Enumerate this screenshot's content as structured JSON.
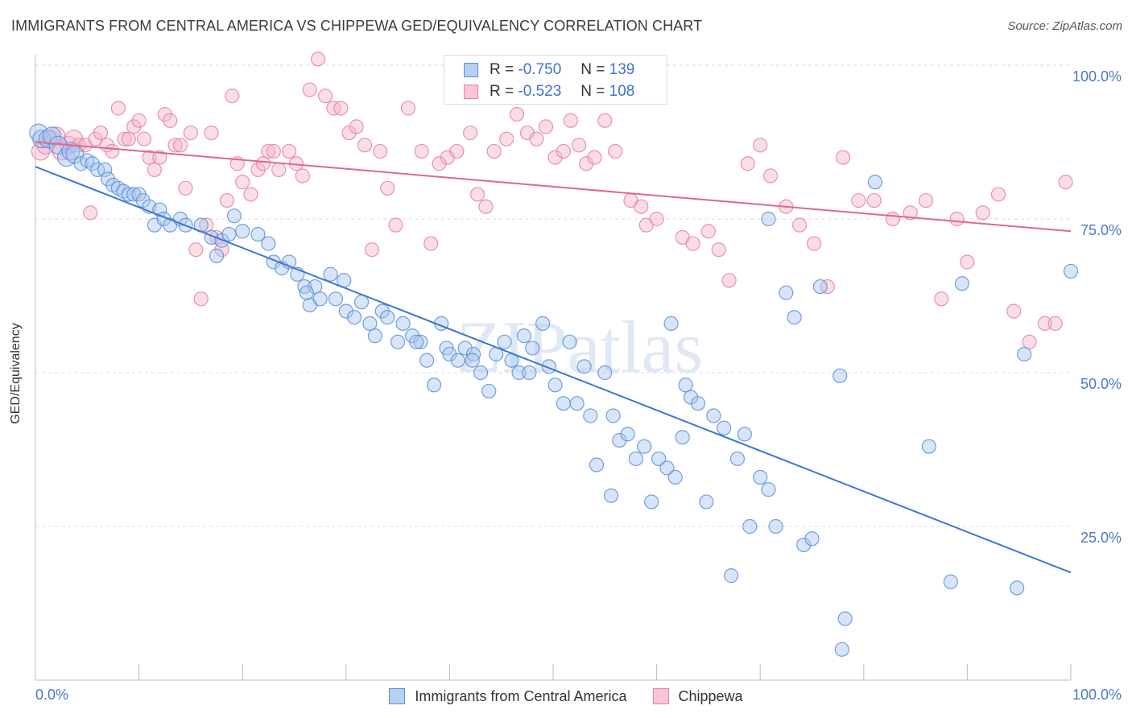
{
  "title": "IMMIGRANTS FROM CENTRAL AMERICA VS CHIPPEWA GED/EQUIVALENCY CORRELATION CHART",
  "source": "Source: ZipAtlas.com",
  "watermark": "ZIPatlas",
  "legend": {
    "rows": [
      {
        "r_label": "R =",
        "r_value": "-0.750",
        "n_label": "N =",
        "n_value": "139"
      },
      {
        "r_label": "R =",
        "r_value": "-0.523",
        "n_label": "N =",
        "n_value": "108"
      }
    ]
  },
  "chart_data": {
    "type": "scatter",
    "xlabel": "",
    "ylabel": "GED/Equivalency",
    "xlim": [
      0,
      100
    ],
    "ylim": [
      0,
      100
    ],
    "x_tick_labels": [
      "0.0%",
      "100.0%"
    ],
    "y_tick_labels": [
      "25.0%",
      "50.0%",
      "75.0%",
      "100.0%"
    ],
    "y_ticks": [
      25,
      50,
      75,
      100
    ],
    "grid": "horizontal dashed",
    "series": [
      {
        "name": "Immigrants from Central America",
        "color": "#5b8fd8",
        "fill": "#a9c6ef",
        "trend": {
          "x": [
            0,
            100
          ],
          "y": [
            83.5,
            17.5
          ]
        },
        "points": [
          [
            0.3,
            89
          ],
          [
            0.6,
            88
          ],
          [
            1.2,
            88
          ],
          [
            1.6,
            88.5
          ],
          [
            2.2,
            87
          ],
          [
            3.0,
            85
          ],
          [
            3.4,
            86
          ],
          [
            3.8,
            85.5
          ],
          [
            4.4,
            84
          ],
          [
            5.0,
            84.5
          ],
          [
            5.5,
            84
          ],
          [
            6.0,
            83
          ],
          [
            6.7,
            83
          ],
          [
            7.0,
            81.5
          ],
          [
            7.5,
            80.5
          ],
          [
            8.0,
            80
          ],
          [
            8.5,
            79.5
          ],
          [
            9.0,
            79
          ],
          [
            9.5,
            79
          ],
          [
            10.0,
            79
          ],
          [
            10.4,
            78
          ],
          [
            11.0,
            77
          ],
          [
            11.5,
            74
          ],
          [
            12.0,
            76.5
          ],
          [
            12.4,
            75
          ],
          [
            13.0,
            74
          ],
          [
            14.0,
            75
          ],
          [
            14.5,
            74
          ],
          [
            16.0,
            74
          ],
          [
            17.0,
            72
          ],
          [
            17.5,
            69
          ],
          [
            18.0,
            71.5
          ],
          [
            18.7,
            72.5
          ],
          [
            19.2,
            75.5
          ],
          [
            20.0,
            73
          ],
          [
            21.5,
            72.5
          ],
          [
            22.5,
            71
          ],
          [
            23.0,
            68
          ],
          [
            23.8,
            67
          ],
          [
            24.5,
            68
          ],
          [
            25.3,
            66
          ],
          [
            26.0,
            64
          ],
          [
            26.5,
            61
          ],
          [
            27.0,
            64
          ],
          [
            27.5,
            62
          ],
          [
            28.5,
            66
          ],
          [
            29.0,
            62
          ],
          [
            29.8,
            65
          ],
          [
            30.0,
            60
          ],
          [
            30.8,
            59
          ],
          [
            31.5,
            61.5
          ],
          [
            32.3,
            58
          ],
          [
            32.8,
            56
          ],
          [
            33.5,
            60
          ],
          [
            34.0,
            59
          ],
          [
            35.0,
            55
          ],
          [
            35.5,
            58
          ],
          [
            36.4,
            56
          ],
          [
            37.2,
            55
          ],
          [
            37.8,
            52
          ],
          [
            38.5,
            48
          ],
          [
            39.2,
            58
          ],
          [
            39.7,
            54
          ],
          [
            40.0,
            53
          ],
          [
            40.8,
            52
          ],
          [
            41.5,
            54
          ],
          [
            42.3,
            53
          ],
          [
            43.0,
            50
          ],
          [
            43.8,
            47
          ],
          [
            44.5,
            53
          ],
          [
            45.3,
            55
          ],
          [
            46.0,
            52
          ],
          [
            46.7,
            50
          ],
          [
            47.2,
            56
          ],
          [
            48.0,
            54
          ],
          [
            49.0,
            58
          ],
          [
            49.6,
            51
          ],
          [
            50.2,
            48
          ],
          [
            51.0,
            45
          ],
          [
            51.6,
            55
          ],
          [
            52.3,
            45
          ],
          [
            53.0,
            51
          ],
          [
            53.6,
            43
          ],
          [
            54.2,
            35
          ],
          [
            55.0,
            50
          ],
          [
            55.8,
            43
          ],
          [
            56.4,
            39
          ],
          [
            57.2,
            40
          ],
          [
            58.0,
            36
          ],
          [
            58.8,
            38
          ],
          [
            59.5,
            29
          ],
          [
            60.2,
            36
          ],
          [
            61.0,
            34.5
          ],
          [
            61.8,
            33
          ],
          [
            62.5,
            39.5
          ],
          [
            63.3,
            46
          ],
          [
            64.0,
            45
          ],
          [
            64.8,
            29
          ],
          [
            65.5,
            43
          ],
          [
            66.5,
            41
          ],
          [
            67.2,
            17
          ],
          [
            67.8,
            36
          ],
          [
            68.5,
            40
          ],
          [
            69.0,
            25
          ],
          [
            70.0,
            33
          ],
          [
            70.8,
            31
          ],
          [
            71.5,
            25
          ],
          [
            72.5,
            63
          ],
          [
            73.3,
            59
          ],
          [
            74.2,
            22
          ],
          [
            75.0,
            23
          ],
          [
            75.8,
            64
          ],
          [
            47.7,
            50
          ],
          [
            61.4,
            58
          ],
          [
            86.3,
            38
          ],
          [
            94.8,
            15
          ],
          [
            100,
            66.5
          ],
          [
            89.5,
            64.5
          ],
          [
            95.5,
            53
          ],
          [
            77.9,
            5
          ],
          [
            78.2,
            10
          ],
          [
            77.7,
            49.5
          ],
          [
            81.1,
            81
          ],
          [
            70.8,
            75
          ],
          [
            88.4,
            16
          ],
          [
            62.8,
            48
          ],
          [
            55.6,
            30
          ],
          [
            42.2,
            52
          ],
          [
            36.8,
            55
          ],
          [
            26.2,
            63
          ]
        ]
      },
      {
        "name": "Chippewa",
        "color": "#e87fa2",
        "fill": "#f5b6c8",
        "trend": {
          "x": [
            0,
            100
          ],
          "y": [
            87.5,
            73
          ]
        },
        "points": [
          [
            0.5,
            86
          ],
          [
            1.0,
            87
          ],
          [
            1.5,
            88
          ],
          [
            2.0,
            88.5
          ],
          [
            2.5,
            86
          ],
          [
            3.2,
            87
          ],
          [
            3.7,
            88
          ],
          [
            4.2,
            87
          ],
          [
            4.8,
            87
          ],
          [
            5.3,
            76
          ],
          [
            5.8,
            88
          ],
          [
            6.3,
            89
          ],
          [
            6.9,
            87
          ],
          [
            7.4,
            86
          ],
          [
            8.0,
            93
          ],
          [
            8.6,
            88
          ],
          [
            9.0,
            88
          ],
          [
            9.5,
            90
          ],
          [
            10.0,
            91
          ],
          [
            10.5,
            88
          ],
          [
            11.0,
            85
          ],
          [
            11.5,
            83
          ],
          [
            12.0,
            85
          ],
          [
            12.5,
            92
          ],
          [
            13.0,
            91
          ],
          [
            13.5,
            87
          ],
          [
            14.0,
            87
          ],
          [
            14.5,
            80
          ],
          [
            15.0,
            89
          ],
          [
            15.5,
            70
          ],
          [
            16.0,
            62
          ],
          [
            16.5,
            74
          ],
          [
            17.0,
            89
          ],
          [
            17.5,
            72
          ],
          [
            18.0,
            70
          ],
          [
            18.5,
            78
          ],
          [
            19.0,
            95
          ],
          [
            19.5,
            84
          ],
          [
            20.0,
            81
          ],
          [
            20.8,
            79
          ],
          [
            21.5,
            83
          ],
          [
            22.0,
            84
          ],
          [
            22.5,
            86
          ],
          [
            23.0,
            86
          ],
          [
            23.5,
            83
          ],
          [
            24.5,
            86
          ],
          [
            25.2,
            84
          ],
          [
            25.8,
            82
          ],
          [
            26.5,
            96
          ],
          [
            27.3,
            101
          ],
          [
            28.0,
            95
          ],
          [
            28.8,
            93
          ],
          [
            29.5,
            93
          ],
          [
            30.3,
            89
          ],
          [
            31.0,
            90
          ],
          [
            31.8,
            87
          ],
          [
            32.5,
            70
          ],
          [
            33.3,
            86
          ],
          [
            34.0,
            80
          ],
          [
            34.8,
            74
          ],
          [
            36.0,
            93
          ],
          [
            37.3,
            86
          ],
          [
            38.2,
            71
          ],
          [
            39.0,
            84
          ],
          [
            39.8,
            85
          ],
          [
            40.7,
            86
          ],
          [
            42.0,
            89
          ],
          [
            42.7,
            79
          ],
          [
            43.5,
            77
          ],
          [
            44.3,
            86
          ],
          [
            45.5,
            88
          ],
          [
            46.5,
            92
          ],
          [
            47.5,
            89
          ],
          [
            48.4,
            88
          ],
          [
            49.3,
            90
          ],
          [
            50.2,
            85
          ],
          [
            51.0,
            86
          ],
          [
            51.7,
            91
          ],
          [
            52.5,
            87
          ],
          [
            53.2,
            84
          ],
          [
            54.0,
            85
          ],
          [
            55.0,
            91
          ],
          [
            56.0,
            86
          ],
          [
            57.5,
            78
          ],
          [
            58.5,
            77
          ],
          [
            59.0,
            74
          ],
          [
            60.0,
            75
          ],
          [
            62.5,
            72
          ],
          [
            63.5,
            71
          ],
          [
            65.0,
            73
          ],
          [
            66.0,
            70
          ],
          [
            67.0,
            65
          ],
          [
            68.8,
            84
          ],
          [
            70.0,
            87
          ],
          [
            71.0,
            82
          ],
          [
            72.5,
            77
          ],
          [
            73.8,
            74
          ],
          [
            75.2,
            71
          ],
          [
            76.5,
            64
          ],
          [
            78.0,
            85
          ],
          [
            79.5,
            78
          ],
          [
            81.0,
            78
          ],
          [
            82.8,
            75
          ],
          [
            84.5,
            76
          ],
          [
            86.0,
            78
          ],
          [
            87.5,
            62
          ],
          [
            89.0,
            75
          ],
          [
            90.0,
            68
          ],
          [
            91.5,
            76
          ],
          [
            93.0,
            79
          ],
          [
            94.5,
            60
          ],
          [
            96.0,
            55
          ],
          [
            97.5,
            58
          ],
          [
            98.5,
            58
          ],
          [
            99.5,
            81
          ]
        ]
      }
    ]
  },
  "colors": {
    "blue_line": "#3a78d4",
    "pink_line": "#e0668f",
    "axis_text": "#4a79c9",
    "grid": "#d9d9d9",
    "watermark": "#dce7f5"
  }
}
